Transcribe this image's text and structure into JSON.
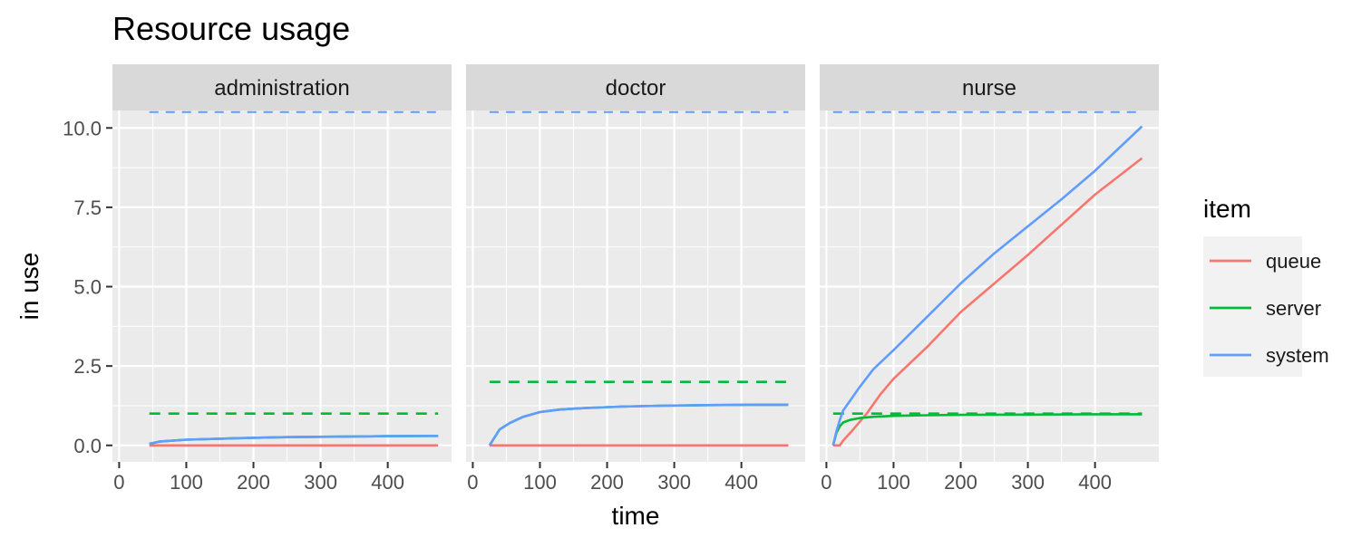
{
  "chart_data": {
    "type": "line",
    "title": "Resource usage",
    "xlabel": "time",
    "ylabel": "in use",
    "xlim": [
      -10,
      495
    ],
    "ylim": [
      -0.52,
      10.55
    ],
    "x_ticks": [
      0,
      100,
      200,
      300,
      400
    ],
    "y_ticks": [
      0,
      2.5,
      5,
      7.5,
      10
    ],
    "y_tick_labels": [
      "0.0",
      "2.5",
      "5.0",
      "7.5",
      "10.0"
    ],
    "grid": true,
    "legend": {
      "title": "item",
      "position": "right",
      "entries": [
        {
          "name": "queue",
          "color": "#F8766D"
        },
        {
          "name": "server",
          "color": "#00BA38"
        },
        {
          "name": "system",
          "color": "#619CFF"
        }
      ]
    },
    "facets": [
      {
        "name": "administration",
        "queue_limit": 10.5,
        "server_capacity": 1,
        "limit_x": [
          45,
          475
        ],
        "series": [
          {
            "name": "queue",
            "x": [
              45,
              475
            ],
            "y": [
              0,
              0
            ]
          },
          {
            "name": "server",
            "x": [
              45,
              60,
              100,
              150,
              200,
              250,
              300,
              350,
              400,
              475
            ],
            "y": [
              0.05,
              0.12,
              0.18,
              0.21,
              0.24,
              0.26,
              0.27,
              0.28,
              0.29,
              0.3
            ]
          },
          {
            "name": "system",
            "x": [
              45,
              60,
              100,
              150,
              200,
              250,
              300,
              350,
              400,
              475
            ],
            "y": [
              0.05,
              0.12,
              0.18,
              0.21,
              0.24,
              0.26,
              0.27,
              0.28,
              0.29,
              0.3
            ]
          }
        ]
      },
      {
        "name": "doctor",
        "queue_limit": 10.5,
        "server_capacity": 2,
        "limit_x": [
          25,
          470
        ],
        "series": [
          {
            "name": "queue",
            "x": [
              25,
              470
            ],
            "y": [
              0,
              0
            ]
          },
          {
            "name": "server",
            "x": [
              25,
              40,
              55,
              75,
              100,
              130,
              170,
              220,
              280,
              350,
              420,
              470
            ],
            "y": [
              0,
              0.5,
              0.7,
              0.9,
              1.05,
              1.13,
              1.18,
              1.22,
              1.25,
              1.27,
              1.28,
              1.28
            ]
          },
          {
            "name": "system",
            "x": [
              25,
              40,
              55,
              75,
              100,
              130,
              170,
              220,
              280,
              350,
              420,
              470
            ],
            "y": [
              0,
              0.5,
              0.7,
              0.9,
              1.05,
              1.13,
              1.18,
              1.22,
              1.25,
              1.27,
              1.28,
              1.28
            ]
          }
        ]
      },
      {
        "name": "nurse",
        "queue_limit": 10.5,
        "server_capacity": 1,
        "limit_x": [
          10,
          470
        ],
        "series": [
          {
            "name": "queue",
            "x": [
              10,
              20,
              25,
              40,
              60,
              80,
              100,
              150,
              200,
              250,
              300,
              350,
              400,
              470
            ],
            "y": [
              0,
              0,
              0.15,
              0.5,
              1.0,
              1.6,
              2.1,
              3.1,
              4.2,
              5.1,
              6.0,
              6.95,
              7.9,
              9.05
            ]
          },
          {
            "name": "server",
            "x": [
              10,
              15,
              20,
              25,
              35,
              50,
              70,
              100,
              150,
              200,
              300,
              400,
              470
            ],
            "y": [
              0,
              0.4,
              0.6,
              0.72,
              0.8,
              0.86,
              0.9,
              0.93,
              0.95,
              0.96,
              0.97,
              0.98,
              0.98
            ]
          },
          {
            "name": "system",
            "x": [
              10,
              15,
              20,
              25,
              35,
              50,
              70,
              100,
              150,
              200,
              250,
              300,
              350,
              400,
              470
            ],
            "y": [
              0,
              0.45,
              0.8,
              1.1,
              1.4,
              1.85,
              2.4,
              3.0,
              4.05,
              5.1,
              6.05,
              6.9,
              7.75,
              8.65,
              10.05
            ]
          }
        ]
      }
    ]
  }
}
